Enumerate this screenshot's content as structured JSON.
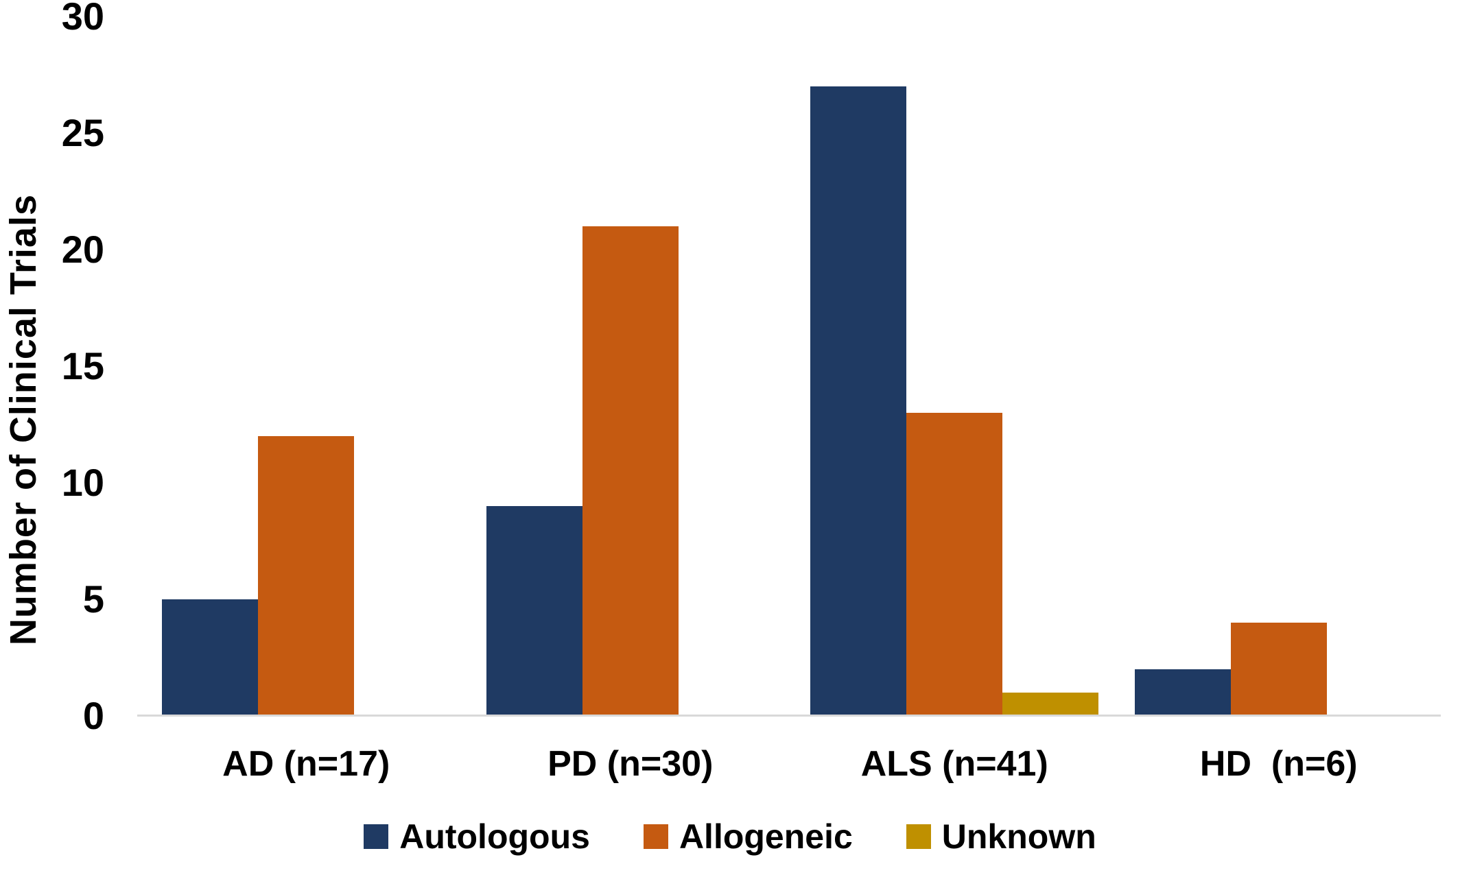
{
  "chart_data": {
    "type": "bar",
    "title": "",
    "categories": [
      "AD (n=17)",
      "PD (n=30)",
      "ALS (n=41)",
      "HD  (n=6)"
    ],
    "series": [
      {
        "name": "Autologous",
        "color": "#1f3a63",
        "values": [
          5,
          9,
          27,
          2
        ]
      },
      {
        "name": "Allogeneic",
        "color": "#c55a11",
        "values": [
          12,
          21,
          13,
          4
        ]
      },
      {
        "name": "Unknown",
        "color": "#bf9000",
        "values": [
          0,
          0,
          1,
          0
        ]
      }
    ],
    "xlabel": "",
    "ylabel": "Number of Clinical Trials",
    "ylim": [
      0,
      30
    ],
    "yticks": [
      0,
      5,
      10,
      15,
      20,
      25,
      30
    ],
    "grid": false,
    "legend_position": "bottom",
    "axis_line_color": "#d9d9d9",
    "background_color": "#ffffff"
  }
}
